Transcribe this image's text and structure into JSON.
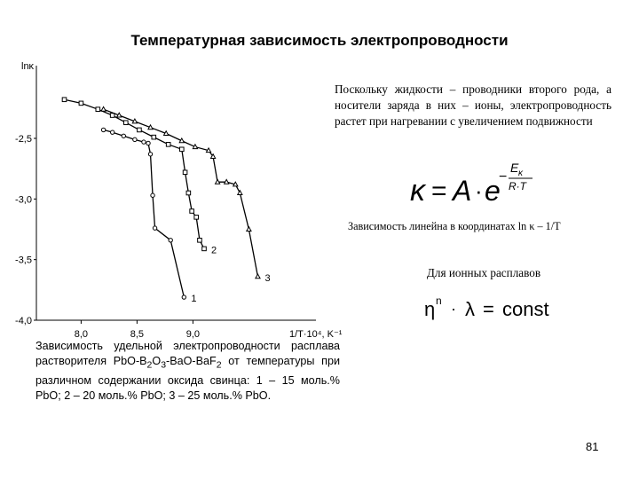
{
  "slide": {
    "title": "Температурная зависимость электропроводности",
    "page_number": "81"
  },
  "chart_data": {
    "type": "line",
    "ylabel": "lnκ",
    "xlabel": "1/T·10⁴, K⁻¹",
    "xlim": [
      7.6,
      10.1
    ],
    "ylim": [
      -4.0,
      -1.9
    ],
    "x_ticks": [
      "8,0",
      "8,5",
      "9,0"
    ],
    "y_ticks": [
      "-2,5",
      "-3,0",
      "-3,5",
      "-4,0"
    ],
    "grid": false,
    "series": [
      {
        "name": "1",
        "marker": "circle",
        "points": [
          [
            8.2,
            -2.43
          ],
          [
            8.28,
            -2.45
          ],
          [
            8.38,
            -2.48
          ],
          [
            8.48,
            -2.51
          ],
          [
            8.56,
            -2.53
          ],
          [
            8.6,
            -2.54
          ],
          [
            8.62,
            -2.63
          ],
          [
            8.64,
            -2.97
          ],
          [
            8.66,
            -3.24
          ],
          [
            8.8,
            -3.34
          ],
          [
            8.92,
            -3.81
          ]
        ]
      },
      {
        "name": "2",
        "marker": "square",
        "points": [
          [
            7.85,
            -2.18
          ],
          [
            8.0,
            -2.21
          ],
          [
            8.15,
            -2.26
          ],
          [
            8.28,
            -2.31
          ],
          [
            8.4,
            -2.37
          ],
          [
            8.52,
            -2.43
          ],
          [
            8.65,
            -2.49
          ],
          [
            8.78,
            -2.55
          ],
          [
            8.9,
            -2.59
          ],
          [
            8.93,
            -2.78
          ],
          [
            8.96,
            -2.95
          ],
          [
            8.99,
            -3.1
          ],
          [
            9.03,
            -3.15
          ],
          [
            9.06,
            -3.34
          ],
          [
            9.1,
            -3.41
          ]
        ]
      },
      {
        "name": "3",
        "marker": "triangle",
        "points": [
          [
            8.2,
            -2.26
          ],
          [
            8.34,
            -2.31
          ],
          [
            8.48,
            -2.36
          ],
          [
            8.62,
            -2.41
          ],
          [
            8.76,
            -2.46
          ],
          [
            8.9,
            -2.52
          ],
          [
            9.02,
            -2.57
          ],
          [
            9.14,
            -2.6
          ],
          [
            9.18,
            -2.65
          ],
          [
            9.22,
            -2.86
          ],
          [
            9.3,
            -2.86
          ],
          [
            9.38,
            -2.88
          ],
          [
            9.42,
            -2.95
          ],
          [
            9.5,
            -3.25
          ],
          [
            9.58,
            -3.64
          ]
        ]
      }
    ]
  },
  "caption": {
    "prefix": "Зависимость удельной электропроводности расплава растворителя ",
    "formula_parts": [
      "PbO-B",
      "2",
      "O",
      "3",
      "-BaO-BaF",
      "2"
    ],
    "suffix": " от температуры при различном содержании оксида свинца: 1 – 15 моль.% PbO; 2 – 20 моль.% PbO; 3 – 25 моль.% PbO."
  },
  "text": {
    "paragraph": "Поскольку жидкости – проводники второго рода, а носители заряда в них – ионы, электропроводность растет при нагревании с увеличением подвижности",
    "linear_note": "Зависимость линейна в координатах ln κ – 1/T",
    "ionic_label": "Для ионных расплавов"
  },
  "formula1": {
    "lhs": "κ",
    "eq": "=",
    "a": "A",
    "dot": "·",
    "e": "e",
    "minus": "−",
    "numer": "E",
    "numer_sub": "κ",
    "denom": "R·T"
  },
  "formula2": {
    "eta": "η",
    "power": "n",
    "dot": "·",
    "lambda": "λ",
    "eq": "=",
    "const": "const"
  }
}
